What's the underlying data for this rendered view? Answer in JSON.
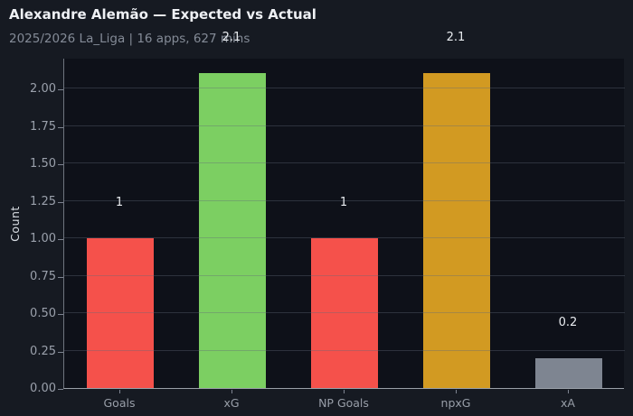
{
  "header": {
    "title": "Alexandre Alemão — Expected vs Actual",
    "subtitle": "2025/2026 La_Liga | 16 apps, 627 mins"
  },
  "chart_data": {
    "type": "bar",
    "title": "Alexandre Alemão — Expected vs Actual",
    "subtitle": "2025/2026 La_Liga | 16 apps, 627 mins",
    "categories": [
      "Goals",
      "xG",
      "NP Goals",
      "npxG",
      "xA"
    ],
    "values": [
      1,
      2.1,
      1,
      2.1,
      0.2
    ],
    "value_labels": [
      "1",
      "2.1",
      "1",
      "2.1",
      "0.2"
    ],
    "bar_colors": [
      "#f5514b",
      "#7ccf62",
      "#f5514b",
      "#d29a22",
      "#7e8591"
    ],
    "xlabel": "",
    "ylabel": "Count",
    "ylim": [
      0,
      2.205
    ],
    "yticks": [
      0,
      0.25,
      0.5,
      0.75,
      1,
      1.25,
      1.5,
      1.75,
      2
    ],
    "ytick_labels": [
      "0.00",
      "0.25",
      "0.50",
      "0.75",
      "1.00",
      "1.25",
      "1.50",
      "1.75",
      "2.00"
    ],
    "grid": "horizontal",
    "legend": "none",
    "colors": {
      "page_background": "#161a22",
      "plot_background": "#0e1119",
      "title_text": "#eef0f4",
      "subtitle_text": "#848b97",
      "tick_text": "#9aa0ab",
      "value_label_text": "#e9ecf0",
      "axis_line": "#9aa0a8"
    }
  }
}
